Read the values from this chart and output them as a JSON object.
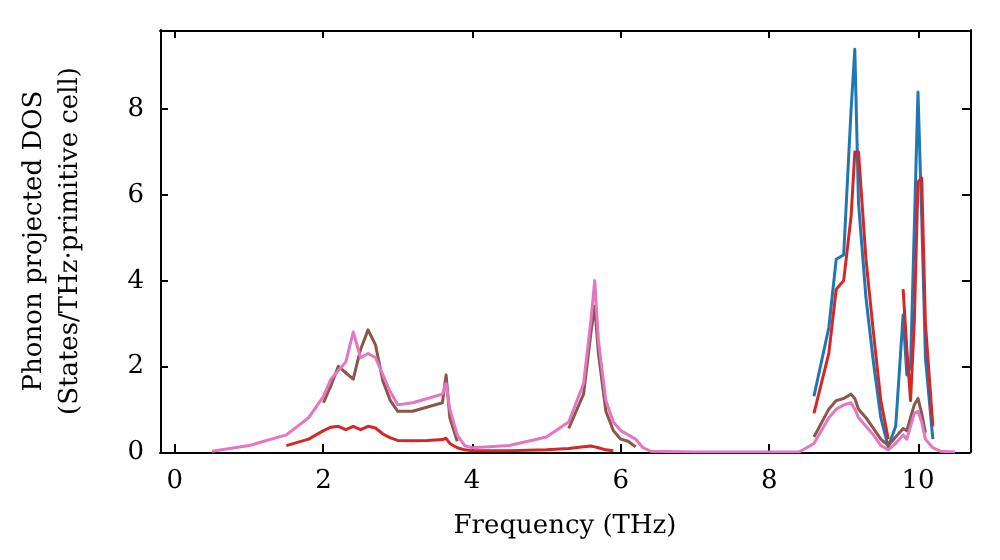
{
  "chart_data": {
    "type": "line",
    "xlabel": "Frequency (THz)",
    "ylabel": "Phonon projected DOS\n(States/THz·primitive cell)",
    "x": [
      0.5,
      1.0,
      1.5,
      1.8,
      2.0,
      2.1,
      2.2,
      2.3,
      2.4,
      2.5,
      2.6,
      2.7,
      2.8,
      2.9,
      3.0,
      3.2,
      3.4,
      3.6,
      3.65,
      3.7,
      3.8,
      3.9,
      4.0,
      4.5,
      5.0,
      5.3,
      5.5,
      5.6,
      5.65,
      5.7,
      5.8,
      5.9,
      6.0,
      6.1,
      6.2,
      6.3,
      6.4,
      7.0,
      8.0,
      8.4,
      8.6,
      8.8,
      8.9,
      9.0,
      9.1,
      9.15,
      9.2,
      9.3,
      9.4,
      9.5,
      9.6,
      9.7,
      9.8,
      9.85,
      9.9,
      9.95,
      10.0,
      10.05,
      10.1,
      10.2,
      10.3,
      10.5
    ],
    "series": [
      {
        "color": "#1f77b4",
        "values": [
          null,
          null,
          null,
          null,
          null,
          null,
          null,
          null,
          null,
          null,
          null,
          null,
          null,
          null,
          null,
          null,
          null,
          null,
          null,
          null,
          null,
          null,
          null,
          null,
          null,
          null,
          null,
          null,
          null,
          null,
          null,
          null,
          null,
          null,
          null,
          null,
          null,
          null,
          null,
          null,
          1.3,
          2.9,
          4.5,
          4.6,
          8.0,
          9.4,
          5.8,
          3.6,
          2.1,
          0.8,
          0.12,
          0.6,
          3.2,
          1.8,
          2.0,
          5.2,
          8.4,
          5.5,
          2.2,
          0.3,
          null,
          null
        ]
      },
      {
        "color": "#d62728",
        "values": [
          null,
          null,
          0.15,
          0.3,
          0.5,
          0.58,
          0.6,
          0.52,
          0.6,
          0.52,
          0.6,
          0.56,
          0.42,
          0.33,
          0.27,
          0.26,
          0.27,
          0.29,
          0.32,
          0.2,
          0.1,
          0.05,
          0.03,
          0.03,
          0.05,
          0.08,
          0.12,
          0.14,
          0.12,
          0.1,
          0.05,
          0.03,
          null,
          null,
          null,
          null,
          null,
          null,
          null,
          null,
          0.9,
          2.3,
          3.8,
          4.0,
          5.5,
          7.0,
          7.0,
          4.5,
          2.8,
          1.2,
          0.3,
          null,
          3.8,
          2.4,
          1.2,
          3.0,
          6.3,
          6.4,
          3.0,
          0.6,
          null,
          null
        ]
      },
      {
        "color": "#8c564b",
        "values": [
          null,
          null,
          null,
          null,
          1.15,
          1.55,
          2.0,
          1.85,
          1.7,
          2.4,
          2.85,
          2.5,
          1.65,
          1.2,
          0.95,
          0.95,
          1.05,
          1.15,
          1.8,
          0.8,
          0.25,
          null,
          null,
          null,
          null,
          0.55,
          1.35,
          2.8,
          3.4,
          2.3,
          0.95,
          0.5,
          0.3,
          0.25,
          0.12,
          null,
          null,
          null,
          null,
          null,
          0.35,
          1.0,
          1.2,
          1.25,
          1.35,
          1.25,
          1.0,
          0.8,
          0.55,
          0.3,
          0.15,
          0.35,
          0.55,
          0.5,
          0.8,
          1.1,
          1.25,
          0.9,
          0.45,
          null,
          null,
          null
        ]
      },
      {
        "color": "#e377c2",
        "values": [
          0.02,
          0.15,
          0.4,
          0.8,
          1.3,
          1.7,
          1.9,
          2.1,
          2.8,
          2.2,
          2.3,
          2.2,
          1.8,
          1.4,
          1.1,
          1.15,
          1.25,
          1.35,
          1.6,
          1.0,
          0.4,
          0.15,
          0.1,
          0.15,
          0.35,
          0.7,
          1.6,
          3.1,
          4.0,
          2.6,
          1.2,
          0.7,
          0.5,
          0.4,
          0.3,
          0.1,
          0.02,
          0,
          0,
          0,
          0.2,
          0.8,
          1.0,
          1.1,
          1.15,
          1.0,
          0.8,
          0.6,
          0.4,
          0.15,
          0.05,
          0.2,
          0.4,
          0.3,
          0.6,
          0.9,
          0.95,
          0.7,
          0.3,
          0.1,
          0.02,
          0
        ]
      }
    ],
    "xlim": [
      -0.2,
      10.7
    ],
    "xticks": [
      0,
      2,
      4,
      6,
      8,
      10
    ],
    "ylim": [
      0,
      9.85
    ],
    "yticks": [
      0,
      2,
      4,
      6,
      8
    ],
    "grid": false,
    "marker": "none",
    "line_style": "solid"
  }
}
